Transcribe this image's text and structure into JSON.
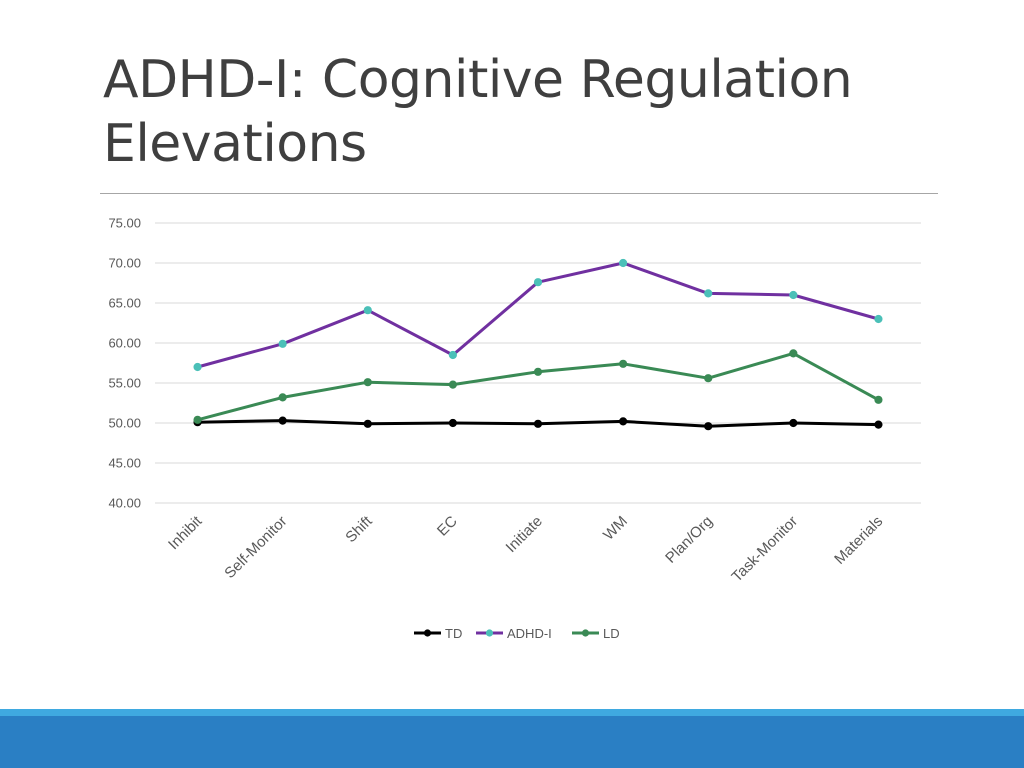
{
  "slide": {
    "title_line1": "ADHD-I: Cognitive Regulation",
    "title_line2": "Elevations"
  },
  "chart_data": {
    "type": "line",
    "categories": [
      "Inhibit",
      "Self-Monitor",
      "Shift",
      "EC",
      "Initiate",
      "WM",
      "Plan/Org",
      "Task-Monitor",
      "Materials"
    ],
    "ylim": [
      40,
      75
    ],
    "yticks": [
      "40.00",
      "45.00",
      "50.00",
      "55.00",
      "60.00",
      "65.00",
      "70.00",
      "75.00"
    ],
    "grid": true,
    "legend_position": "bottom",
    "series": [
      {
        "name": "TD",
        "color": "#000000",
        "marker_color": "#000000",
        "values": [
          50.1,
          50.3,
          49.9,
          50.0,
          49.9,
          50.2,
          49.6,
          50.0,
          49.8
        ]
      },
      {
        "name": "ADHD-I",
        "color": "#7030a0",
        "marker_color": "#4bc0b8",
        "values": [
          57.0,
          59.9,
          64.1,
          58.5,
          67.6,
          70.0,
          66.2,
          66.0,
          63.0
        ]
      },
      {
        "name": "LD",
        "color": "#3a8a55",
        "marker_color": "#3a8a55",
        "values": [
          50.4,
          53.2,
          55.1,
          54.8,
          56.4,
          57.4,
          55.6,
          58.7,
          52.9
        ]
      }
    ]
  },
  "theme": {
    "footer_light": "#3fa9e0",
    "footer_dark": "#2a7fc4"
  }
}
